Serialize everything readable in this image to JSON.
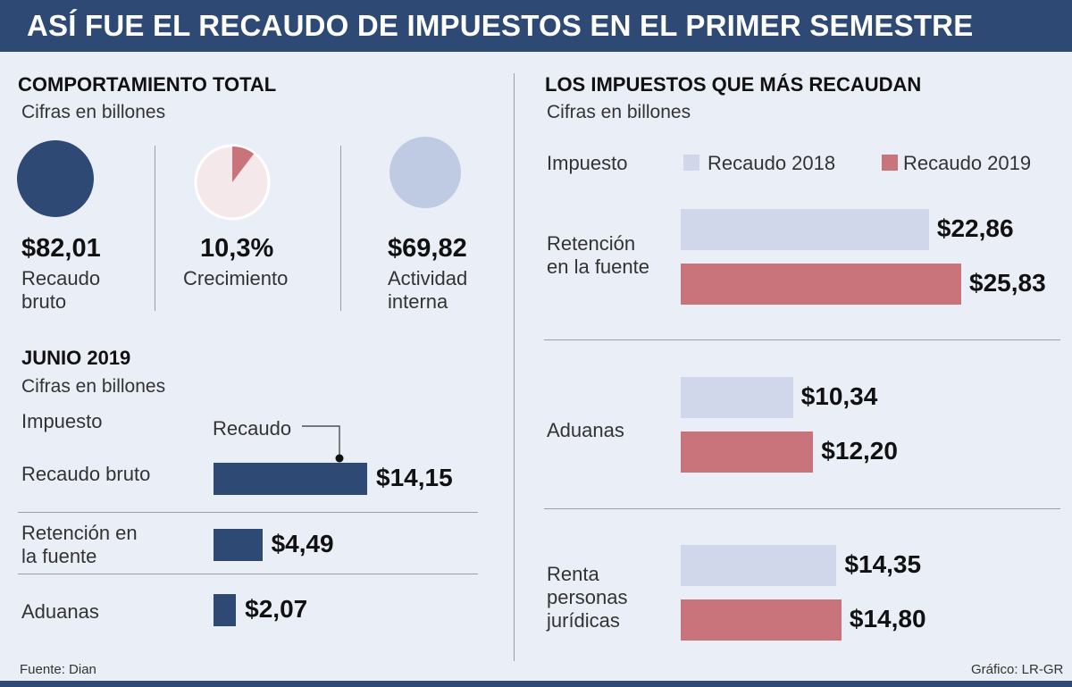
{
  "header": {
    "title": "ASÍ FUE EL RECAUDO DE IMPUESTOS EN EL PRIMER SEMESTRE"
  },
  "colors": {
    "navy": "#2e4a74",
    "light_blue": "#bfcbe2",
    "bar_2018": "#d0d7ea",
    "bar_2019": "#c9737b",
    "pie_bg": "#f5e8ea",
    "pie_slice": "#c9737b"
  },
  "total": {
    "title": "COMPORTAMIENTO TOTAL",
    "subtitle": "Cifras en billones",
    "items": [
      {
        "value": "$82,01",
        "label": [
          "Recaudo",
          "bruto"
        ]
      },
      {
        "value": "10,3%",
        "label": [
          "Crecimiento"
        ],
        "pct": 10.3
      },
      {
        "value": "$69,82",
        "label": [
          "Actividad",
          "interna"
        ]
      }
    ]
  },
  "junio": {
    "title": "JUNIO 2019",
    "subtitle": "Cifras en billones",
    "col_impuesto": "Impuesto",
    "col_recaudo": "Recaudo",
    "rows": [
      {
        "label": [
          "Recaudo bruto"
        ],
        "value": 14.15,
        "display": "$14,15"
      },
      {
        "label": [
          "Retención en",
          "la fuente"
        ],
        "value": 4.49,
        "display": "$4,49"
      },
      {
        "label": [
          "Aduanas"
        ],
        "value": 2.07,
        "display": "$2,07"
      }
    ]
  },
  "impuestos": {
    "title": "LOS IMPUESTOS QUE MÁS RECAUDAN",
    "subtitle": "Cifras en billones",
    "col_impuesto": "Impuesto",
    "legend": [
      {
        "name": "Recaudo 2018",
        "color": "#d0d7ea"
      },
      {
        "name": "Recaudo 2019",
        "color": "#c9737b"
      }
    ]
  },
  "chart_data": [
    {
      "type": "bar",
      "title": "JUNIO 2019",
      "categories": [
        "Recaudo bruto",
        "Retención en la fuente",
        "Aduanas"
      ],
      "values": [
        14.15,
        4.49,
        2.07
      ]
    },
    {
      "type": "bar",
      "title": "LOS IMPUESTOS QUE MÁS RECAUDAN",
      "categories": [
        "Retención en la fuente",
        "Aduanas",
        "Renta personas jurídicas"
      ],
      "series": [
        {
          "name": "Recaudo 2018",
          "values": [
            22.86,
            10.34,
            14.35
          ],
          "labels": [
            "$22,86",
            "$10,34",
            "$14,35"
          ]
        },
        {
          "name": "Recaudo 2019",
          "values": [
            25.83,
            12.2,
            14.8
          ],
          "labels": [
            "$25,83",
            "$12,20",
            "$14,80"
          ]
        }
      ],
      "category_labels": [
        [
          "Retención",
          "en la fuente"
        ],
        [
          "Aduanas"
        ],
        [
          "Renta",
          "personas",
          "jurídicas"
        ]
      ]
    }
  ],
  "footer": {
    "source": "Fuente: Dian",
    "credit": "Gráfico: LR-GR"
  }
}
